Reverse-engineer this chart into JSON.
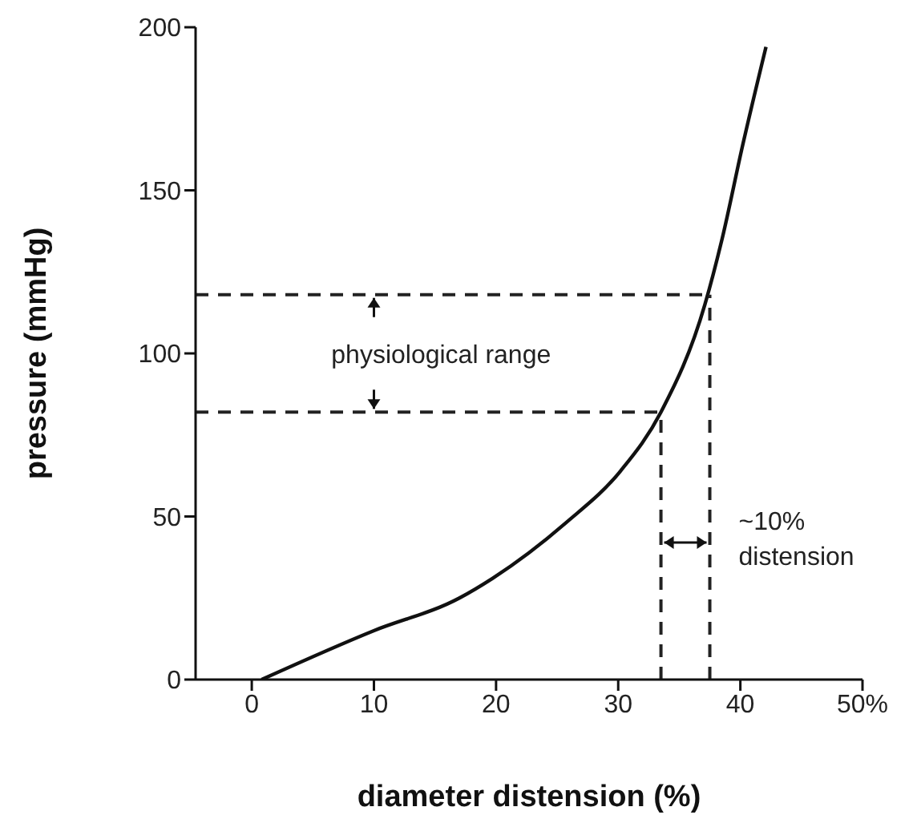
{
  "chart_data": {
    "type": "line",
    "xlabel": "diameter distension (%)",
    "ylabel": "pressure (mmHg)",
    "xlim": [
      -4.6,
      50
    ],
    "xticks": [
      0,
      10,
      20,
      30,
      40,
      {
        "value": 50,
        "label": "50%"
      }
    ],
    "ylim": [
      0,
      200
    ],
    "yticks": [
      0,
      50,
      100,
      150,
      200
    ],
    "marker": "none",
    "series": [
      {
        "color": "#111111",
        "line_style": "solid",
        "x": [
          0.8,
          10,
          17,
          19.7,
          25.7,
          30.2,
          33.5,
          37.1,
          38.5,
          40.2,
          42.1
        ],
        "values": [
          0,
          15,
          25,
          31,
          48,
          64,
          82,
          115,
          135,
          164,
          194
        ]
      },
      {
        "color": "#222222",
        "line_style": "dashed",
        "x": [
          -4.6,
          37.5
        ],
        "values": [
          118,
          118
        ]
      },
      {
        "color": "#222222",
        "line_style": "dashed",
        "x": [
          -4.6,
          33.5
        ],
        "values": [
          82,
          82
        ]
      },
      {
        "color": "#222222",
        "line_style": "dashed",
        "x": [
          33.5,
          33.5
        ],
        "values": [
          0,
          82
        ]
      },
      {
        "color": "#222222",
        "line_style": "dashed",
        "x": [
          37.5,
          37.5
        ],
        "values": [
          0,
          118
        ]
      }
    ],
    "annotations": [
      "physiological range",
      "~10%\ndistension"
    ]
  }
}
